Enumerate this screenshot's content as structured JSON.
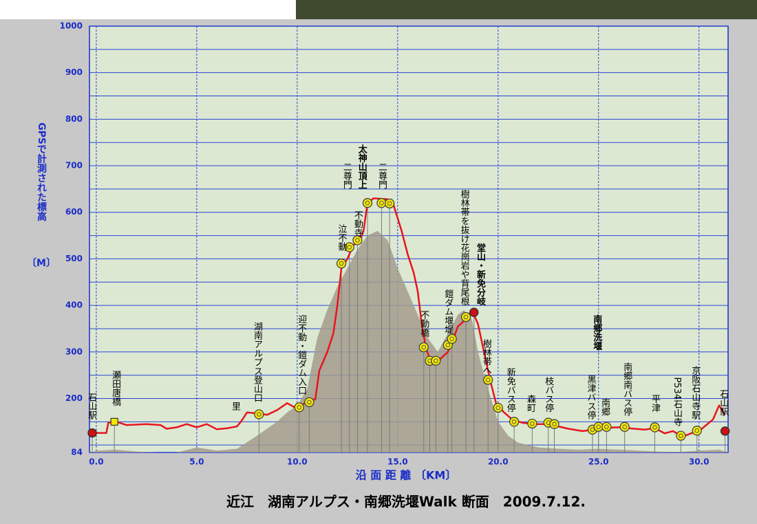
{
  "chart_data": {
    "type": "line",
    "title": "近江　湖南アルプス・南郷洗堰Walk 断面　2009.7.12.",
    "x_label": "沿 面 距 離 〔KM〕",
    "y_label": "GPSで計測された標高",
    "y_unit_label": "〔M〕",
    "xlim": [
      -0.34,
      31.45
    ],
    "ylim": [
      84,
      1000
    ],
    "xticks": [
      {
        "value": 0,
        "label": "0.0"
      },
      {
        "value": 5,
        "label": "5.0"
      },
      {
        "value": 10,
        "label": "10.0"
      },
      {
        "value": 15,
        "label": "15.0"
      },
      {
        "value": 20,
        "label": "20.0"
      },
      {
        "value": 25,
        "label": "25.0"
      },
      {
        "value": 30,
        "label": "30.0"
      }
    ],
    "yticks": [
      84,
      200,
      300,
      400,
      500,
      600,
      700,
      800,
      900,
      1000
    ],
    "y_minor_grid": [
      100,
      150,
      250,
      350,
      450,
      550,
      650,
      750,
      850,
      950
    ],
    "grid": true,
    "series": [
      {
        "color": "#a39b8d",
        "fill": true,
        "x": [
          -0.3,
          0,
          1,
          2,
          3,
          4,
          5,
          6,
          7,
          8,
          9,
          9.5,
          10,
          10.5,
          11,
          11.5,
          12,
          12.5,
          13,
          13.5,
          14,
          14.5,
          15,
          15.5,
          16,
          16.5,
          17,
          17.5,
          18,
          18.3,
          18.7,
          19,
          19.5,
          20,
          20.5,
          21,
          22,
          23,
          24,
          25,
          26,
          27,
          28,
          29,
          30,
          31,
          31.45
        ],
        "values": [
          84,
          88,
          90,
          86,
          84,
          84,
          95,
          88,
          92,
          120,
          150,
          170,
          185,
          220,
          330,
          390,
          440,
          480,
          520,
          550,
          560,
          540,
          480,
          430,
          380,
          330,
          300,
          340,
          380,
          390,
          370,
          300,
          220,
          150,
          120,
          105,
          95,
          92,
          90,
          92,
          90,
          88,
          86,
          85,
          88,
          90,
          84
        ]
      },
      {
        "color": "#e8141c",
        "fill": false,
        "x": [
          -0.2,
          0.5,
          0.6,
          1.0,
          1.5,
          2.5,
          3.2,
          3.5,
          4.0,
          4.5,
          5.0,
          5.5,
          6.0,
          6.5,
          7.0,
          7.2,
          7.5,
          8.0,
          8.5,
          9.0,
          9.5,
          10.0,
          10.3,
          10.6,
          10.9,
          11.1,
          11.5,
          11.8,
          12.0,
          12.2,
          12.5,
          12.8,
          13.1,
          13.3,
          13.5,
          13.8,
          14.5,
          14.8,
          15.2,
          15.5,
          15.8,
          16.0,
          16.2,
          16.4,
          16.6,
          17.0,
          17.5,
          17.7,
          18.0,
          18.4,
          18.7,
          19.0,
          19.3,
          19.6,
          19.9,
          20.3,
          20.7,
          21.2,
          21.8,
          22.5,
          23.0,
          23.5,
          24.2,
          24.8,
          25.3,
          26.0,
          26.5,
          27.3,
          27.8,
          28.3,
          28.7,
          29.2,
          29.6,
          30.0,
          30.7,
          31.0,
          31.3
        ],
        "values": [
          126,
          126,
          148,
          150,
          143,
          145,
          143,
          135,
          138,
          145,
          138,
          145,
          134,
          136,
          140,
          150,
          170,
          168,
          165,
          175,
          190,
          178,
          188,
          195,
          198,
          260,
          300,
          340,
          400,
          480,
          500,
          530,
          535,
          560,
          620,
          630,
          628,
          615,
          560,
          510,
          470,
          430,
          360,
          310,
          285,
          280,
          300,
          320,
          355,
          370,
          390,
          360,
          300,
          240,
          190,
          170,
          155,
          148,
          145,
          145,
          140,
          135,
          130,
          133,
          137,
          138,
          136,
          133,
          136,
          125,
          130,
          118,
          125,
          130,
          155,
          185,
          165
        ]
      }
    ],
    "markers": [
      {
        "x": -0.2,
        "y": 126,
        "kind": "red"
      },
      {
        "x": 0.9,
        "y": 150,
        "kind": "square"
      },
      {
        "x": 8.1,
        "y": 166,
        "kind": "circle"
      },
      {
        "x": 10.1,
        "y": 181,
        "kind": "circle"
      },
      {
        "x": 10.6,
        "y": 192,
        "kind": "circle"
      },
      {
        "x": 12.2,
        "y": 490,
        "kind": "circle"
      },
      {
        "x": 12.6,
        "y": 525,
        "kind": "circle"
      },
      {
        "x": 13.0,
        "y": 540,
        "kind": "circle"
      },
      {
        "x": 13.5,
        "y": 620,
        "kind": "circle"
      },
      {
        "x": 14.2,
        "y": 620,
        "kind": "circle"
      },
      {
        "x": 14.6,
        "y": 619,
        "kind": "circle"
      },
      {
        "x": 16.3,
        "y": 310,
        "kind": "circle"
      },
      {
        "x": 16.6,
        "y": 281,
        "kind": "circle"
      },
      {
        "x": 16.9,
        "y": 281,
        "kind": "circle"
      },
      {
        "x": 17.5,
        "y": 315,
        "kind": "circle"
      },
      {
        "x": 17.7,
        "y": 328,
        "kind": "circle"
      },
      {
        "x": 18.4,
        "y": 375,
        "kind": "circle"
      },
      {
        "x": 18.8,
        "y": 385,
        "kind": "red"
      },
      {
        "x": 19.5,
        "y": 240,
        "kind": "circle"
      },
      {
        "x": 20.0,
        "y": 180,
        "kind": "circle"
      },
      {
        "x": 20.8,
        "y": 150,
        "kind": "circle"
      },
      {
        "x": 21.7,
        "y": 146,
        "kind": "circle"
      },
      {
        "x": 22.5,
        "y": 148,
        "kind": "circle"
      },
      {
        "x": 22.8,
        "y": 145,
        "kind": "circle"
      },
      {
        "x": 24.7,
        "y": 133,
        "kind": "circle"
      },
      {
        "x": 25.0,
        "y": 139,
        "kind": "circle"
      },
      {
        "x": 25.4,
        "y": 139,
        "kind": "circle"
      },
      {
        "x": 26.3,
        "y": 139,
        "kind": "circle"
      },
      {
        "x": 27.8,
        "y": 138,
        "kind": "circle"
      },
      {
        "x": 29.1,
        "y": 120,
        "kind": "circle"
      },
      {
        "x": 29.9,
        "y": 131,
        "kind": "circle"
      },
      {
        "x": 31.3,
        "y": 130,
        "kind": "red"
      }
    ],
    "labels": [
      {
        "text": "石山駅",
        "x": -0.25,
        "y": 155,
        "bold": false
      },
      {
        "text": "瀬田唐橋",
        "x": 0.95,
        "y": 184,
        "bold": false
      },
      {
        "text": "里",
        "x": 6.9,
        "y": 174,
        "bold": false
      },
      {
        "text": "湖南アルプス登山口",
        "x": 8.0,
        "y": 192,
        "bold": false
      },
      {
        "text": "迎不動・鎧ダム入口",
        "x": 10.2,
        "y": 207,
        "bold": false
      },
      {
        "text": "泣不動",
        "x": 12.2,
        "y": 517,
        "bold": false
      },
      {
        "text": "二尊門",
        "x": 12.45,
        "y": 650,
        "bold": false
      },
      {
        "text": "太神山頂上",
        "x": 13.2,
        "y": 650,
        "bold": true
      },
      {
        "text": "不動寺",
        "x": 13.0,
        "y": 546,
        "bold": false
      },
      {
        "text": "二尊門",
        "x": 14.2,
        "y": 650,
        "bold": false
      },
      {
        "text": "不動橋",
        "x": 16.3,
        "y": 332,
        "bold": false
      },
      {
        "text": "鎧ダム堰堤",
        "x": 17.5,
        "y": 339,
        "bold": false
      },
      {
        "text": "樹林帯を抜け花崗岩や背尾根",
        "x": 18.3,
        "y": 399,
        "bold": false
      },
      {
        "text": "堂山・新免分岐",
        "x": 19.1,
        "y": 399,
        "bold": true
      },
      {
        "text": "樹林帯へ",
        "x": 19.4,
        "y": 251,
        "bold": false
      },
      {
        "text": "新免バス停",
        "x": 20.6,
        "y": 170,
        "bold": false
      },
      {
        "text": "森町",
        "x": 21.6,
        "y": 170,
        "bold": false
      },
      {
        "text": "枝バス停",
        "x": 22.5,
        "y": 170,
        "bold": false
      },
      {
        "text": "黒津バス停",
        "x": 24.6,
        "y": 155,
        "bold": false
      },
      {
        "text": "南郷洗堰",
        "x": 24.9,
        "y": 303,
        "bold": true
      },
      {
        "text": "南郷",
        "x": 25.3,
        "y": 162,
        "bold": false
      },
      {
        "text": "南郷南バス停",
        "x": 26.4,
        "y": 162,
        "bold": false
      },
      {
        "text": "平津",
        "x": 27.8,
        "y": 170,
        "bold": false
      },
      {
        "text": "P534石山寺",
        "x": 28.9,
        "y": 140,
        "bold": false
      },
      {
        "text": "京阪石山寺駅",
        "x": 29.8,
        "y": 155,
        "bold": false
      },
      {
        "text": "石山駅",
        "x": 31.2,
        "y": 162,
        "bold": false
      }
    ]
  }
}
